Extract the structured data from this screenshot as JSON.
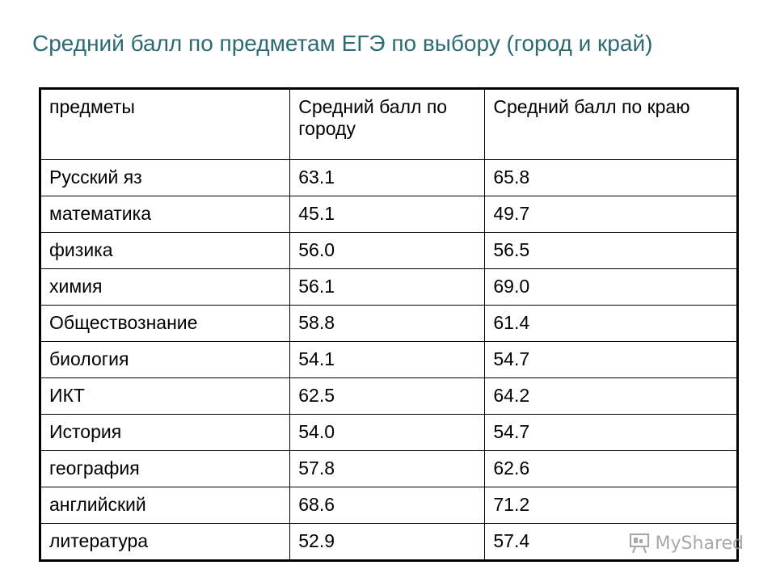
{
  "title": "Средний балл по предметам ЕГЭ по выбору (город и край)",
  "table": {
    "headers": [
      "предметы",
      "Средний балл по городу",
      "Средний балл по краю"
    ],
    "rows": [
      [
        "Русский яз",
        "63.1",
        "65.8"
      ],
      [
        "математика",
        "45.1",
        "49.7"
      ],
      [
        "физика",
        "56.0",
        "56.5"
      ],
      [
        "химия",
        "56.1",
        "69.0"
      ],
      [
        "Обществознание",
        "58.8",
        "61.4"
      ],
      [
        "биология",
        "54.1",
        "54.7"
      ],
      [
        "ИКТ",
        "62.5",
        "64.2"
      ],
      [
        "История",
        "54.0",
        "54.7"
      ],
      [
        "география",
        "57.8",
        "62.6"
      ],
      [
        "английский",
        "68.6",
        "71.2"
      ],
      [
        "литература",
        "52.9",
        "57.4"
      ]
    ]
  },
  "watermark": {
    "text": "MyShared",
    "icon": "presentation-board-icon"
  }
}
